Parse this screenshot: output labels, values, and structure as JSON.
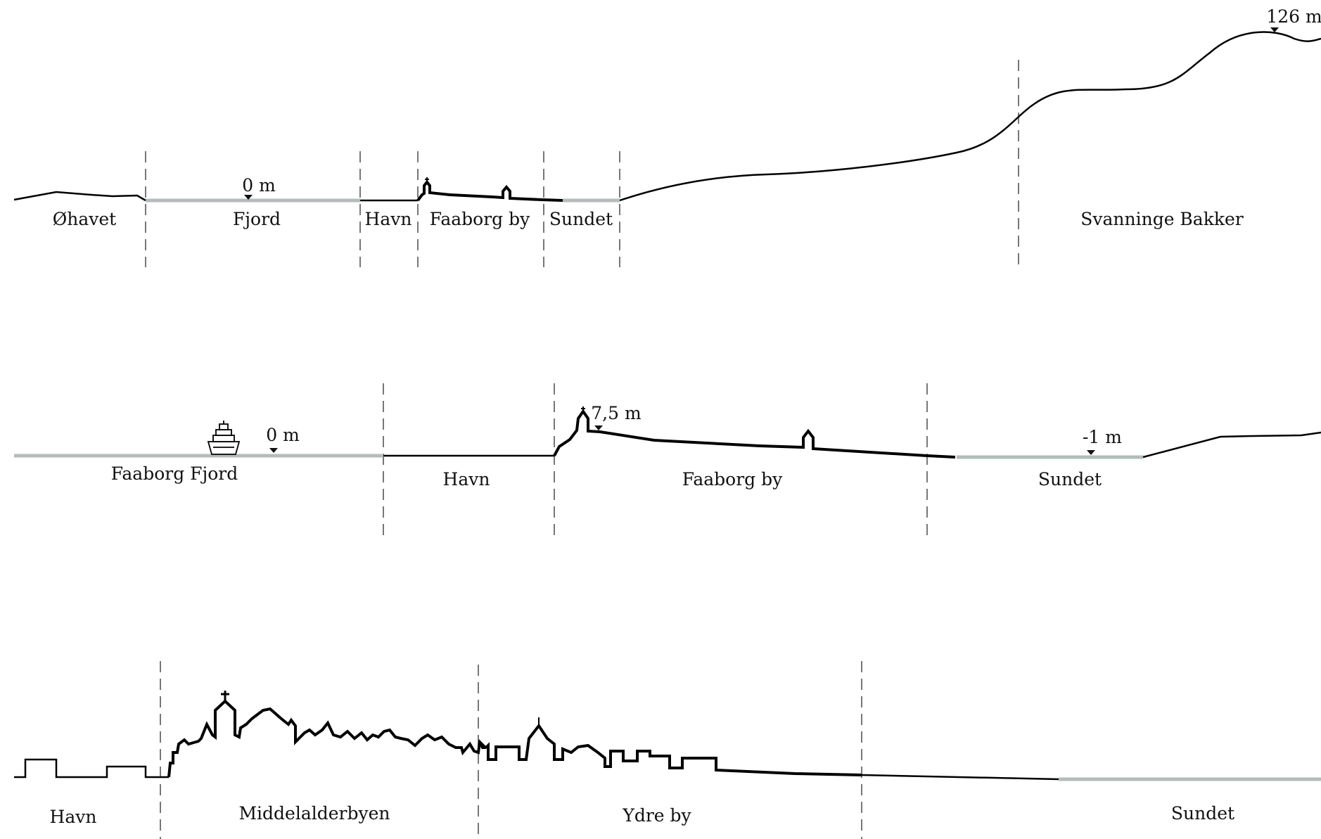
{
  "colors": {
    "land": "#000000",
    "water": "#b3bcbc",
    "divider": "#777777",
    "text": "#111111"
  },
  "section_1": {
    "zones": [
      "Øhavet",
      "Fjord",
      "Havn",
      "Faaborg by",
      "Sundet",
      "Svanninge Bakker"
    ],
    "elevations": {
      "fjord": "0 m",
      "peak": "126 m"
    }
  },
  "section_2": {
    "zones": [
      "Faaborg Fjord",
      "Havn",
      "Faaborg by",
      "Sundet"
    ],
    "elevations": {
      "fjord": "0 m",
      "town": "7,5 m",
      "sundet": "-1 m"
    }
  },
  "section_3": {
    "zones": [
      "Havn",
      "Middelalderbyen",
      "Ydre by",
      "Sundet"
    ]
  },
  "icons": [
    "ship-icon",
    "church-icon",
    "elevation-marker-icon"
  ]
}
